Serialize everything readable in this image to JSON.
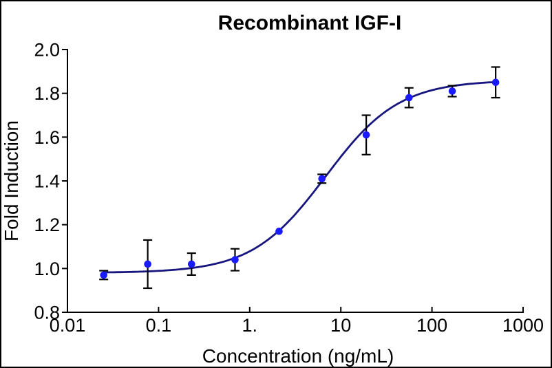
{
  "chart_data": {
    "type": "scatter",
    "title": "Recombinant IGF-I",
    "xlabel": "Concentration (ng/mL)",
    "ylabel": "Fold Induction",
    "x_scale": "log10",
    "xlim": [
      0.01,
      1000
    ],
    "ylim": [
      0.8,
      2.0
    ],
    "grid": false,
    "legend": false,
    "x_ticks": [
      {
        "value": 0.01,
        "label": "0.01"
      },
      {
        "value": 0.1,
        "label": "0.1"
      },
      {
        "value": 1,
        "label": "1."
      },
      {
        "value": 10,
        "label": "10"
      },
      {
        "value": 100,
        "label": "100"
      },
      {
        "value": 1000,
        "label": "1000"
      }
    ],
    "y_ticks": [
      {
        "value": 0.8,
        "label": "0.8"
      },
      {
        "value": 1.0,
        "label": "1.0"
      },
      {
        "value": 1.2,
        "label": "1.2"
      },
      {
        "value": 1.4,
        "label": "1.4"
      },
      {
        "value": 1.6,
        "label": "1.6"
      },
      {
        "value": 1.8,
        "label": "1.8"
      },
      {
        "value": 2.0,
        "label": "2.0"
      }
    ],
    "series": [
      {
        "name": "Recombinant IGF-I",
        "marker": "circle",
        "points": [
          {
            "x": 0.025,
            "y": 0.97,
            "err": 0.02
          },
          {
            "x": 0.076,
            "y": 1.02,
            "err": 0.11
          },
          {
            "x": 0.23,
            "y": 1.02,
            "err": 0.05
          },
          {
            "x": 0.69,
            "y": 1.04,
            "err": 0.05
          },
          {
            "x": 2.1,
            "y": 1.17,
            "err": 0
          },
          {
            "x": 6.2,
            "y": 1.41,
            "err": 0.02
          },
          {
            "x": 19,
            "y": 1.61,
            "err": 0.09
          },
          {
            "x": 56,
            "y": 1.78,
            "err": 0.045
          },
          {
            "x": 167,
            "y": 1.81,
            "err": 0.025
          },
          {
            "x": 500,
            "y": 1.85,
            "err": 0.07
          }
        ]
      }
    ],
    "fit_curve": {
      "model": "four_parameter_logistic",
      "bottom": 0.98,
      "top": 1.86,
      "ec50": 6.8,
      "hill": 1.08,
      "x_start": 0.025,
      "x_end": 500
    }
  },
  "colors": {
    "marker": "#1a1aff",
    "curve": "#16167e",
    "error_bar": "#000000",
    "axis": "#000000",
    "text": "#000000",
    "background": "#ffffff"
  }
}
